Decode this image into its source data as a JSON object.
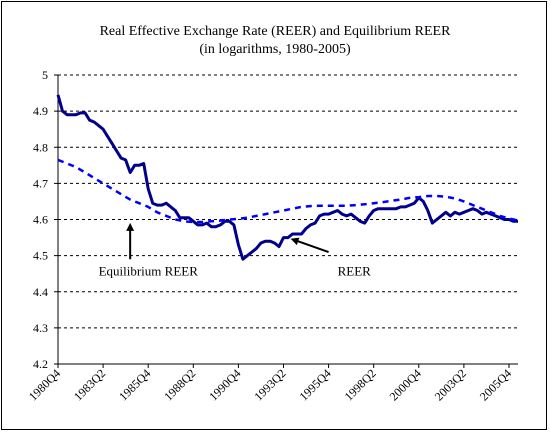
{
  "chart_data": {
    "type": "line",
    "title": "Real Effective Exchange Rate (REER) and Equilibrium REER",
    "subtitle": "(in logarithms, 1980-2005)",
    "xlabel": "",
    "ylabel": "",
    "ylim": [
      4.2,
      5.0
    ],
    "y_ticks": [
      "5",
      "4.9",
      "4.8",
      "4.7",
      "4.6",
      "4.5",
      "4.4",
      "4.3",
      "4.2"
    ],
    "x_ticks": [
      "1980Q4",
      "1983Q2",
      "1985Q4",
      "1988Q2",
      "1990Q4",
      "1993Q2",
      "1995Q4",
      "1998Q2",
      "2000Q4",
      "2003Q2",
      "2005Q4"
    ],
    "x_start": "1980Q4",
    "x_end": "2006Q2",
    "grid": "horizontal dashed",
    "legend": "none",
    "series": [
      {
        "name": "REER",
        "style": "solid",
        "color": "#00008B",
        "points": [
          [
            "1980Q4",
            4.945
          ],
          [
            "1981Q1",
            4.9
          ],
          [
            "1981Q2",
            4.89
          ],
          [
            "1981Q3",
            4.89
          ],
          [
            "1981Q4",
            4.89
          ],
          [
            "1982Q1",
            4.895
          ],
          [
            "1982Q2",
            4.895
          ],
          [
            "1982Q3",
            4.875
          ],
          [
            "1982Q4",
            4.87
          ],
          [
            "1983Q1",
            4.86
          ],
          [
            "1983Q2",
            4.85
          ],
          [
            "1983Q3",
            4.83
          ],
          [
            "1983Q4",
            4.81
          ],
          [
            "1984Q1",
            4.79
          ],
          [
            "1984Q2",
            4.77
          ],
          [
            "1984Q3",
            4.765
          ],
          [
            "1984Q4",
            4.73
          ],
          [
            "1985Q1",
            4.75
          ],
          [
            "1985Q2",
            4.75
          ],
          [
            "1985Q3",
            4.755
          ],
          [
            "1985Q4",
            4.685
          ],
          [
            "1986Q1",
            4.645
          ],
          [
            "1986Q2",
            4.64
          ],
          [
            "1986Q3",
            4.64
          ],
          [
            "1986Q4",
            4.645
          ],
          [
            "1987Q1",
            4.635
          ],
          [
            "1987Q2",
            4.625
          ],
          [
            "1987Q3",
            4.605
          ],
          [
            "1987Q4",
            4.605
          ],
          [
            "1988Q1",
            4.605
          ],
          [
            "1988Q2",
            4.595
          ],
          [
            "1988Q3",
            4.585
          ],
          [
            "1988Q4",
            4.585
          ],
          [
            "1989Q1",
            4.59
          ],
          [
            "1989Q2",
            4.58
          ],
          [
            "1989Q3",
            4.58
          ],
          [
            "1989Q4",
            4.585
          ],
          [
            "1990Q1",
            4.595
          ],
          [
            "1990Q2",
            4.595
          ],
          [
            "1990Q3",
            4.585
          ],
          [
            "1990Q4",
            4.53
          ],
          [
            "1991Q1",
            4.49
          ],
          [
            "1991Q2",
            4.5
          ],
          [
            "1991Q3",
            4.51
          ],
          [
            "1991Q4",
            4.52
          ],
          [
            "1992Q1",
            4.535
          ],
          [
            "1992Q2",
            4.54
          ],
          [
            "1992Q3",
            4.54
          ],
          [
            "1992Q4",
            4.535
          ],
          [
            "1993Q1",
            4.525
          ],
          [
            "1993Q2",
            4.55
          ],
          [
            "1993Q3",
            4.55
          ],
          [
            "1993Q4",
            4.56
          ],
          [
            "1994Q1",
            4.56
          ],
          [
            "1994Q2",
            4.56
          ],
          [
            "1994Q3",
            4.575
          ],
          [
            "1994Q4",
            4.585
          ],
          [
            "1995Q1",
            4.59
          ],
          [
            "1995Q2",
            4.61
          ],
          [
            "1995Q3",
            4.615
          ],
          [
            "1995Q4",
            4.615
          ],
          [
            "1996Q1",
            4.62
          ],
          [
            "1996Q2",
            4.625
          ],
          [
            "1996Q3",
            4.615
          ],
          [
            "1996Q4",
            4.61
          ],
          [
            "1997Q1",
            4.615
          ],
          [
            "1997Q2",
            4.605
          ],
          [
            "1997Q3",
            4.595
          ],
          [
            "1997Q4",
            4.59
          ],
          [
            "1998Q1",
            4.61
          ],
          [
            "1998Q2",
            4.625
          ],
          [
            "1998Q3",
            4.63
          ],
          [
            "1998Q4",
            4.63
          ],
          [
            "1999Q1",
            4.63
          ],
          [
            "1999Q2",
            4.63
          ],
          [
            "1999Q3",
            4.63
          ],
          [
            "1999Q4",
            4.635
          ],
          [
            "2000Q1",
            4.635
          ],
          [
            "2000Q2",
            4.64
          ],
          [
            "2000Q3",
            4.645
          ],
          [
            "2000Q4",
            4.66
          ],
          [
            "2001Q1",
            4.65
          ],
          [
            "2001Q2",
            4.625
          ],
          [
            "2001Q3",
            4.59
          ],
          [
            "2001Q4",
            4.6
          ],
          [
            "2002Q1",
            4.61
          ],
          [
            "2002Q2",
            4.62
          ],
          [
            "2002Q3",
            4.61
          ],
          [
            "2002Q4",
            4.62
          ],
          [
            "2003Q1",
            4.615
          ],
          [
            "2003Q2",
            4.62
          ],
          [
            "2003Q3",
            4.625
          ],
          [
            "2003Q4",
            4.63
          ],
          [
            "2004Q1",
            4.625
          ],
          [
            "2004Q2",
            4.615
          ],
          [
            "2004Q3",
            4.62
          ],
          [
            "2004Q4",
            4.615
          ],
          [
            "2005Q1",
            4.61
          ],
          [
            "2005Q2",
            4.605
          ],
          [
            "2005Q3",
            4.6
          ],
          [
            "2005Q4",
            4.6
          ],
          [
            "2006Q1",
            4.595
          ],
          [
            "2006Q2",
            4.595
          ]
        ]
      },
      {
        "name": "Equilibrium REER",
        "style": "dashed",
        "color": "#0000FF",
        "points": [
          [
            "1980Q4",
            4.765
          ],
          [
            "1981Q2",
            4.755
          ],
          [
            "1981Q4",
            4.745
          ],
          [
            "1982Q2",
            4.73
          ],
          [
            "1982Q4",
            4.715
          ],
          [
            "1983Q2",
            4.7
          ],
          [
            "1983Q4",
            4.685
          ],
          [
            "1984Q2",
            4.67
          ],
          [
            "1984Q4",
            4.655
          ],
          [
            "1985Q2",
            4.645
          ],
          [
            "1985Q4",
            4.635
          ],
          [
            "1986Q2",
            4.62
          ],
          [
            "1986Q4",
            4.61
          ],
          [
            "1987Q2",
            4.6
          ],
          [
            "1987Q4",
            4.595
          ],
          [
            "1988Q2",
            4.593
          ],
          [
            "1988Q4",
            4.593
          ],
          [
            "1989Q2",
            4.595
          ],
          [
            "1989Q4",
            4.597
          ],
          [
            "1990Q2",
            4.6
          ],
          [
            "1990Q4",
            4.602
          ],
          [
            "1991Q2",
            4.605
          ],
          [
            "1991Q4",
            4.61
          ],
          [
            "1992Q2",
            4.615
          ],
          [
            "1992Q4",
            4.62
          ],
          [
            "1993Q2",
            4.625
          ],
          [
            "1993Q4",
            4.63
          ],
          [
            "1994Q2",
            4.635
          ],
          [
            "1994Q4",
            4.637
          ],
          [
            "1995Q2",
            4.638
          ],
          [
            "1995Q4",
            4.638
          ],
          [
            "1996Q2",
            4.638
          ],
          [
            "1996Q4",
            4.638
          ],
          [
            "1997Q2",
            4.64
          ],
          [
            "1997Q4",
            4.642
          ],
          [
            "1998Q2",
            4.645
          ],
          [
            "1998Q4",
            4.648
          ],
          [
            "1999Q2",
            4.652
          ],
          [
            "1999Q4",
            4.655
          ],
          [
            "2000Q2",
            4.66
          ],
          [
            "2000Q4",
            4.662
          ],
          [
            "2001Q2",
            4.665
          ],
          [
            "2001Q4",
            4.665
          ],
          [
            "2002Q2",
            4.663
          ],
          [
            "2002Q4",
            4.658
          ],
          [
            "2003Q2",
            4.65
          ],
          [
            "2003Q4",
            4.64
          ],
          [
            "2004Q2",
            4.63
          ],
          [
            "2004Q4",
            4.62
          ],
          [
            "2005Q2",
            4.61
          ],
          [
            "2005Q4",
            4.603
          ],
          [
            "2006Q2",
            4.597
          ]
        ]
      }
    ],
    "annotations": [
      {
        "text": "Equilibrium REER",
        "arrow_from": [
          "1984Q4",
          4.49
        ],
        "arrow_to": [
          "1984Q4",
          4.585
        ],
        "label_at": [
          "1983Q1",
          4.445
        ]
      },
      {
        "text": "REER",
        "arrow_from": [
          "1995Q4",
          4.51
        ],
        "arrow_to": [
          "1993Q4",
          4.545
        ],
        "label_at": [
          "1996Q2",
          4.445
        ]
      }
    ]
  }
}
